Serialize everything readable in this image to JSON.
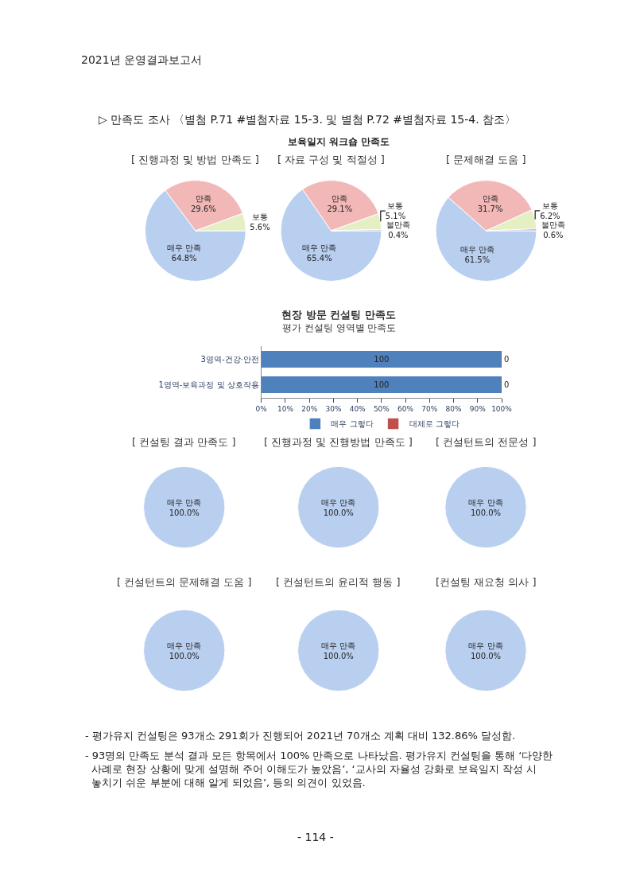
{
  "chart_data": [
    {
      "type": "pie",
      "title": "[ 진행과정 및 방법 만족도 ]",
      "annotations": [
        "2021년 운영결과보고서",
        "▷ 만족도 조사 〈별첨 P.71 #별첨자료 15-3. 및 별첨 P.72 #별첨자료 15-4. 참조〉",
        "보육일지 워크숍 만족도"
      ],
      "categories": [
        "매우 만족",
        "만족",
        "보통"
      ],
      "values": [
        64.8,
        29.6,
        5.6
      ],
      "value_labels": [
        "64.8%",
        "29.6%",
        "5.6%"
      ],
      "colors": [
        "#b9cff0",
        "#f2b8b8",
        "#e4efc4"
      ]
    },
    {
      "type": "pie",
      "title": "[ 자료 구성 및 적절성 ]",
      "categories": [
        "매우 만족",
        "만족",
        "보통",
        "불만족"
      ],
      "values": [
        65.4,
        29.1,
        5.1,
        0.4
      ],
      "value_labels": [
        "65.4%",
        "29.1%",
        "5.1%",
        "0.4%"
      ],
      "colors": [
        "#b9cff0",
        "#f2b8b8",
        "#e4efc4",
        "#b4a6d4"
      ]
    },
    {
      "type": "pie",
      "title": "[ 문제해결 도움 ]",
      "categories": [
        "매우 만족",
        "만족",
        "보통",
        "불만족"
      ],
      "values": [
        61.5,
        31.7,
        6.2,
        0.6
      ],
      "value_labels": [
        "61.5%",
        "31.7%",
        "6.2%",
        "0.6%"
      ],
      "colors": [
        "#b9cff0",
        "#f2b8b8",
        "#e4efc4",
        "#b4a6d4"
      ]
    },
    {
      "type": "bar",
      "orientation": "horizontal",
      "stacked": true,
      "title": "현장 방문 컨설팅 만족도",
      "subtitle": "평가 컨설팅 영역별 만족도",
      "categories": [
        "3영역-건강·안전",
        "1영역-보육과정 및 상호작용"
      ],
      "series": [
        {
          "name": "매우 그렇다",
          "color": "#4f81bd",
          "values": [
            100,
            100
          ]
        },
        {
          "name": "대체로 그렇다",
          "color": "#c0504d",
          "values": [
            0,
            0
          ]
        }
      ],
      "xlim": [
        0,
        100
      ],
      "xticks": [
        {
          "value": 0,
          "label": "0%"
        },
        {
          "value": 10,
          "label": "10%"
        },
        {
          "value": 20,
          "label": "20%"
        },
        {
          "value": 30,
          "label": "30%"
        },
        {
          "value": 40,
          "label": "40%"
        },
        {
          "value": 50,
          "label": "50%"
        },
        {
          "value": 60,
          "label": "60%"
        },
        {
          "value": 70,
          "label": "70%"
        },
        {
          "value": 80,
          "label": "80%"
        },
        {
          "value": 90,
          "label": "90%"
        },
        {
          "value": 100,
          "label": "100%"
        }
      ],
      "data_labels": true,
      "legend": "bottom"
    },
    {
      "type": "pie",
      "title": "[ 컨설팅 결과 만족도 ]",
      "categories": [
        "매우 만족"
      ],
      "values": [
        100
      ],
      "value_labels": [
        "100.0%"
      ],
      "colors": [
        "#b9cff0"
      ]
    },
    {
      "type": "pie",
      "title": "[ 진행과정 및 진행방법 만족도 ]",
      "categories": [
        "매우 만족"
      ],
      "values": [
        100
      ],
      "value_labels": [
        "100.0%"
      ],
      "colors": [
        "#b9cff0"
      ]
    },
    {
      "type": "pie",
      "title": "[ 컨설턴트의 전문성 ]",
      "categories": [
        "매우 만족"
      ],
      "values": [
        100
      ],
      "value_labels": [
        "100.0%"
      ],
      "colors": [
        "#b9cff0"
      ]
    },
    {
      "type": "pie",
      "title": "[ 컨설턴트의 문제해결 도움 ]",
      "categories": [
        "매우 만족"
      ],
      "values": [
        100
      ],
      "value_labels": [
        "100.0%"
      ],
      "colors": [
        "#b9cff0"
      ]
    },
    {
      "type": "pie",
      "title": "[ 컨설턴트의 윤리적 행동 ]",
      "categories": [
        "매우 만족"
      ],
      "values": [
        100
      ],
      "value_labels": [
        "100.0%"
      ],
      "colors": [
        "#b9cff0"
      ]
    },
    {
      "type": "pie",
      "title": "[컨설팅 재요청 의사 ]",
      "categories": [
        "매우 만족"
      ],
      "values": [
        100
      ],
      "value_labels": [
        "100.0%"
      ],
      "colors": [
        "#b9cff0"
      ],
      "annotations": [
        "- 평가유지 컨설팅은 93개소 291회가 진행되어 2021년 70개소 계획 대비 132.86% 달성함.",
        "- 93명의 만족도 분석 결과 모든 항목에서 100% 만족으로 나타났음. 평가유지 컨설팅을 통해 ‘다양한 사례로 현장 상황에 맞게 설명해 주어 이해도가 높았음’, ‘교사의 자율성 강화로 보육일지 작성 시 놓치기 쉬운 부분에 대해 알게 되었음’, 등의 의견이 있었음.",
        "- 114 -"
      ]
    }
  ]
}
